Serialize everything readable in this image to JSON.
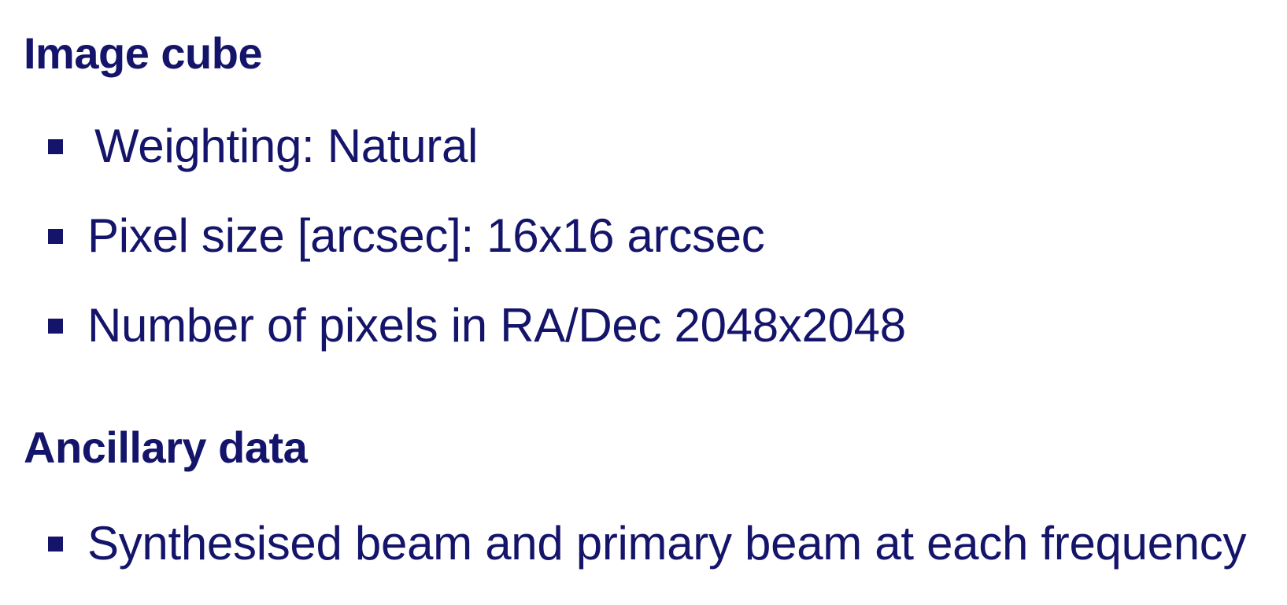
{
  "sections": [
    {
      "heading": "Image cube",
      "items": [
        "Weighting: Natural",
        "Pixel size [arcsec]: 16x16 arcsec",
        "Number of pixels in RA/Dec 2048x2048"
      ]
    },
    {
      "heading": "Ancillary data",
      "items": [
        "Synthesised beam and primary beam at each frequency"
      ]
    }
  ],
  "colors": {
    "text": "#14146b",
    "background": "#ffffff"
  }
}
